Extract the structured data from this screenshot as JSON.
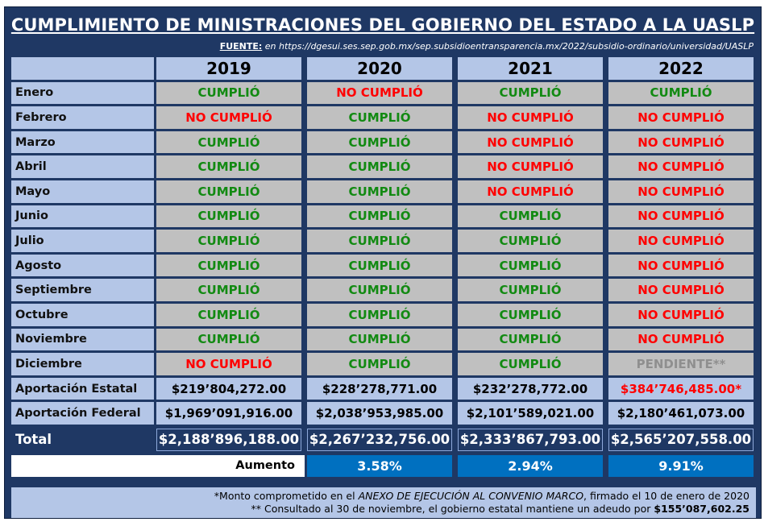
{
  "title": "CUMPLIMIENTO DE MINISTRACIONES DEL GOBIERNO DEL ESTADO A LA UASLP",
  "source": {
    "label": "FUENTE:",
    "text": " en https://dgesui.ses.sep.gob.mx/sep.subsidioentransparencia.mx/2022/subsidio-ordinario/universidad/UASLP"
  },
  "years": [
    "2019",
    "2020",
    "2021",
    "2022"
  ],
  "rows": [
    {
      "month": "Enero",
      "status": [
        "CUMPLIÓ",
        "NO CUMPLIÓ",
        "CUMPLIÓ",
        "CUMPLIÓ"
      ]
    },
    {
      "month": "Febrero",
      "status": [
        "NO CUMPLIÓ",
        "CUMPLIÓ",
        "NO CUMPLIÓ",
        "NO CUMPLIÓ"
      ]
    },
    {
      "month": "Marzo",
      "status": [
        "CUMPLIÓ",
        "CUMPLIÓ",
        "NO CUMPLIÓ",
        "NO CUMPLIÓ"
      ]
    },
    {
      "month": "Abril",
      "status": [
        "CUMPLIÓ",
        "CUMPLIÓ",
        "NO CUMPLIÓ",
        "NO CUMPLIÓ"
      ]
    },
    {
      "month": "Mayo",
      "status": [
        "CUMPLIÓ",
        "CUMPLIÓ",
        "NO CUMPLIÓ",
        "NO CUMPLIÓ"
      ]
    },
    {
      "month": "Junio",
      "status": [
        "CUMPLIÓ",
        "CUMPLIÓ",
        "CUMPLIÓ",
        "NO CUMPLIÓ"
      ]
    },
    {
      "month": "Julio",
      "status": [
        "CUMPLIÓ",
        "CUMPLIÓ",
        "CUMPLIÓ",
        "NO CUMPLIÓ"
      ]
    },
    {
      "month": "Agosto",
      "status": [
        "CUMPLIÓ",
        "CUMPLIÓ",
        "CUMPLIÓ",
        "NO CUMPLIÓ"
      ]
    },
    {
      "month": "Septiembre",
      "status": [
        "CUMPLIÓ",
        "CUMPLIÓ",
        "CUMPLIÓ",
        "NO CUMPLIÓ"
      ]
    },
    {
      "month": "Octubre",
      "status": [
        "CUMPLIÓ",
        "CUMPLIÓ",
        "CUMPLIÓ",
        "NO CUMPLIÓ"
      ]
    },
    {
      "month": "Noviembre",
      "status": [
        "CUMPLIÓ",
        "CUMPLIÓ",
        "CUMPLIÓ",
        "NO CUMPLIÓ"
      ]
    },
    {
      "month": "Diciembre",
      "status": [
        "NO CUMPLIÓ",
        "CUMPLIÓ",
        "CUMPLIÓ",
        "PENDIENTE**"
      ]
    }
  ],
  "estatal": {
    "label": "Aportación Estatal",
    "values": [
      "$219’804,272.00",
      "$228’278,771.00",
      "$232’278,772.00",
      "$384’746,485.00*"
    ]
  },
  "federal": {
    "label": "Aportación Federal",
    "values": [
      "$1,969’091,916.00",
      "$2,038’953,985.00",
      "$2,101’589,021.00",
      "$2,180’461,073.00"
    ]
  },
  "total": {
    "label": "Total",
    "values": [
      "$2,188’896,188.00",
      "$2,267’232,756.00",
      "$2,333’867,793.00",
      "$2,565’207,558.00"
    ]
  },
  "aumento": {
    "label": "Aumento",
    "values": [
      "3.58%",
      "2.94%",
      "9.91%"
    ]
  },
  "notes": {
    "line1_a": "*Monto comprometido en el ",
    "line1_b": "ANEXO DE EJECUCIÓN AL CONVENIO MARCO",
    "line1_c": ", firmado el 10 de enero de 2020",
    "line2_a": "** Consultado al 30 de noviembre, el gobierno estatal mantiene un adeudo por ",
    "line2_b": "$155’087,602.25"
  },
  "colors": {
    "frame": "#1f3864",
    "header_fill": "#b4c6e7",
    "status_fill": "#c0c0c0",
    "ok_text": "#128a12",
    "no_text": "#ff0000",
    "pending_text": "#8f8f8f",
    "increase_fill": "#0070c0"
  }
}
